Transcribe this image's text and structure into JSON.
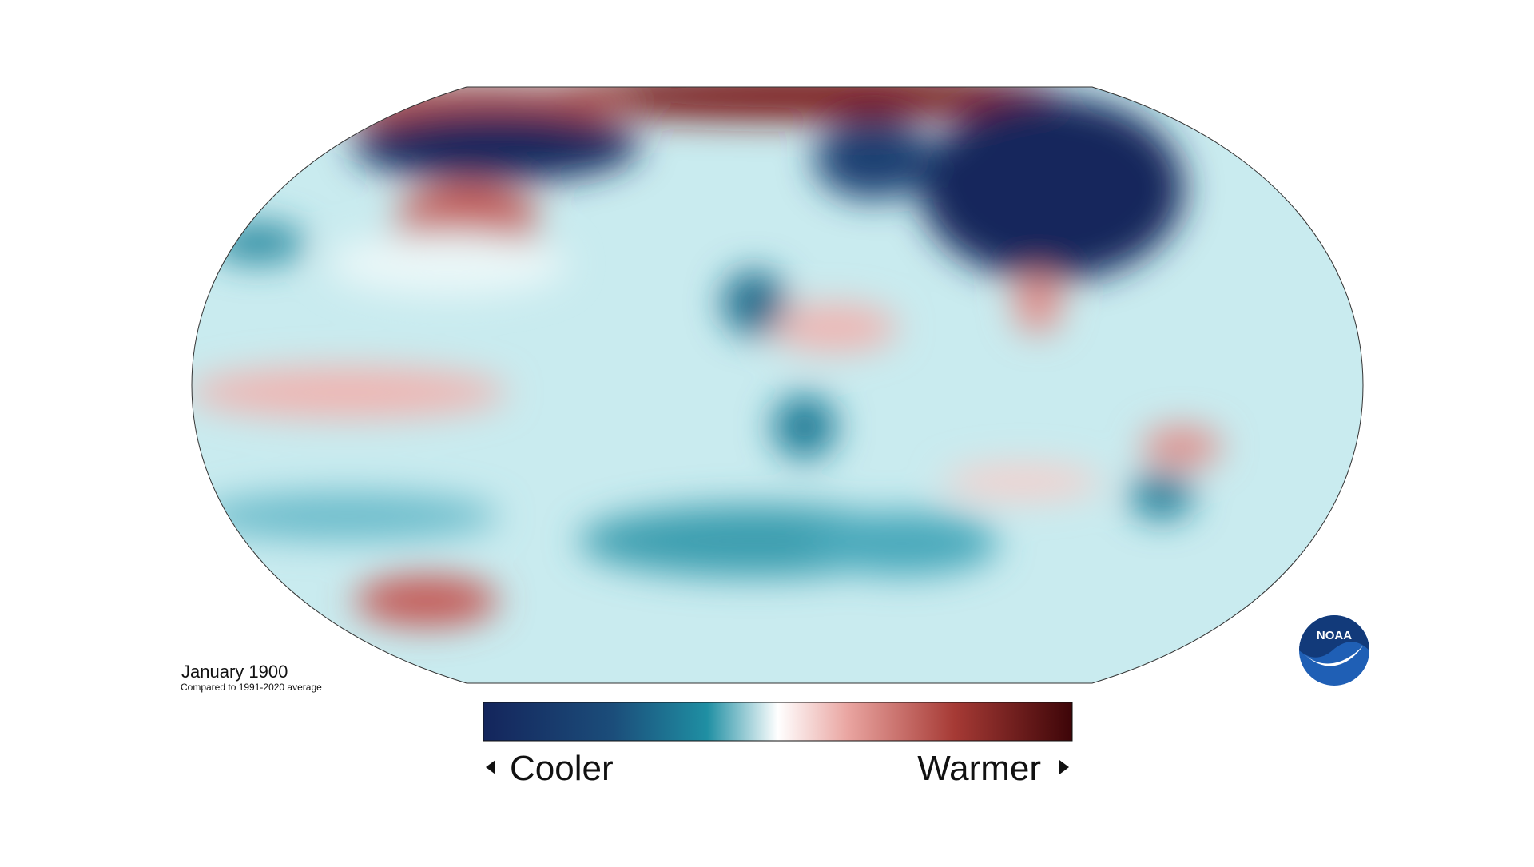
{
  "map": {
    "title": "January 1900",
    "subtitle": "Compared to 1991-2020 average",
    "legend": {
      "low_label": "Cooler",
      "high_label": "Warmer"
    },
    "logo": "NOAA"
  }
}
